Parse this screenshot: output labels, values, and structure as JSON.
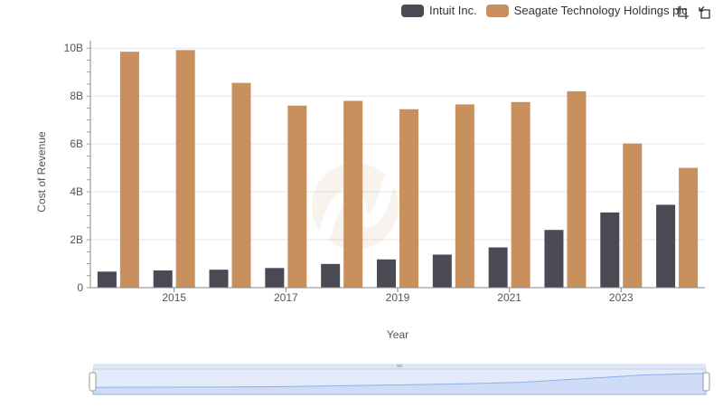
{
  "chart_data": {
    "type": "bar",
    "x": [
      2014,
      2015,
      2016,
      2017,
      2018,
      2019,
      2020,
      2021,
      2022,
      2023,
      2024
    ],
    "xticks": [
      2015,
      2017,
      2019,
      2021,
      2023
    ],
    "xtick_labels": [
      "2015",
      "2017",
      "2019",
      "2021",
      "2023"
    ],
    "yticks": [
      0,
      2,
      4,
      6,
      8,
      10
    ],
    "ytick_labels": [
      "0",
      "2B",
      "4B",
      "6B",
      "8B",
      "10B"
    ],
    "ylim": [
      0,
      10.5
    ],
    "xlabel": "Year",
    "ylabel": "Cost of Revenue",
    "grid": true,
    "legend_position": "top-right",
    "series": [
      {
        "name": "Intuit Inc.",
        "color": "#4a4a55",
        "values": [
          0.67,
          0.72,
          0.75,
          0.82,
          0.99,
          1.18,
          1.38,
          1.68,
          2.41,
          3.14,
          3.46
        ]
      },
      {
        "name": "Seagate Technology Holdings plc",
        "color": "#c8905c",
        "values": [
          9.85,
          9.92,
          8.55,
          7.6,
          7.8,
          7.45,
          7.65,
          7.75,
          8.2,
          6.02,
          5.0
        ]
      }
    ]
  },
  "toolbar": {
    "icons": [
      "crop-icon",
      "reset-icon"
    ]
  },
  "navigator": {
    "handle_icon": "grip-icon"
  }
}
